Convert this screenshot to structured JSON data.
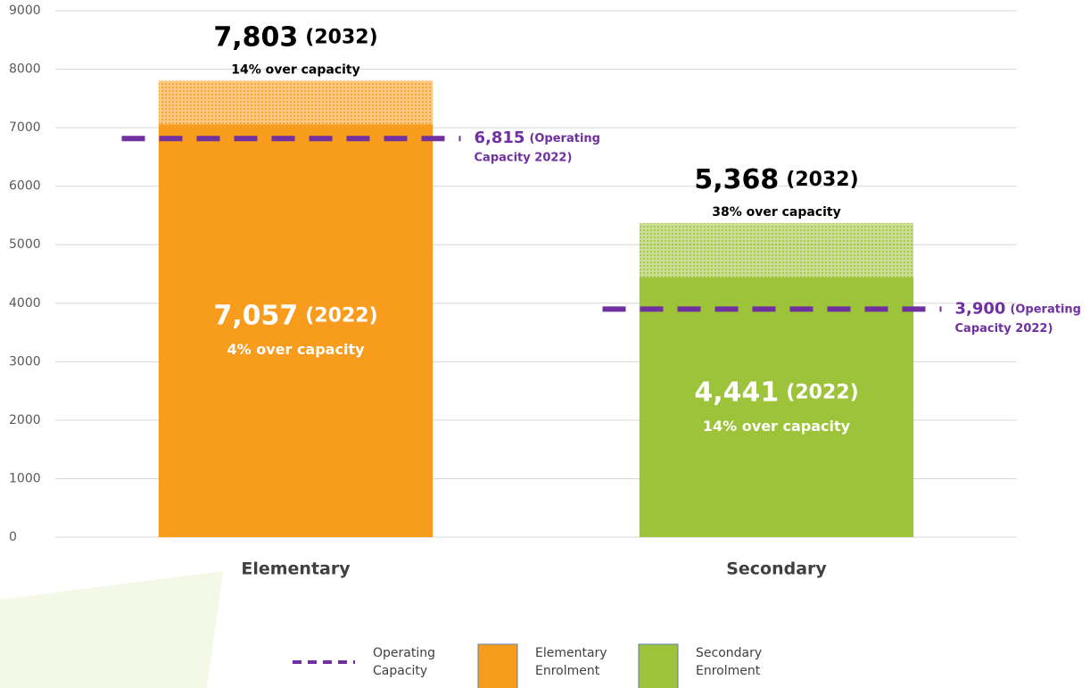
{
  "chart_data": {
    "type": "bar",
    "categories": [
      "Elementary",
      "Secondary"
    ],
    "colors": [
      "#f79c1d",
      "#9dc33b"
    ],
    "legend_names": [
      "Elementary Enrolment",
      "Secondary Enrolment"
    ],
    "ylim": [
      0,
      9000
    ],
    "yticks": [
      0,
      1000,
      2000,
      3000,
      4000,
      5000,
      6000,
      7000,
      8000,
      9000
    ],
    "grid": true,
    "series": [
      {
        "name": "(2032)",
        "pattern": "dotted",
        "values": [
          7803,
          5368
        ],
        "value_labels": [
          "7,803",
          "5,368"
        ],
        "notes": [
          "14%  over capacity",
          "38%  over capacity"
        ]
      },
      {
        "name": "(2022)",
        "pattern": "solid",
        "values": [
          7057,
          4441
        ],
        "value_labels": [
          "7,057",
          "4,441"
        ],
        "notes": [
          "4%  over capacity",
          "14%  over capacity"
        ]
      }
    ],
    "capacity": {
      "name": "Operating Capacity",
      "color": "#7030a0",
      "values": [
        6815,
        3900
      ],
      "value_labels": [
        "6,815",
        "3,900"
      ],
      "label_lines": [
        "(Operating",
        "Capacity 2022)"
      ]
    }
  }
}
